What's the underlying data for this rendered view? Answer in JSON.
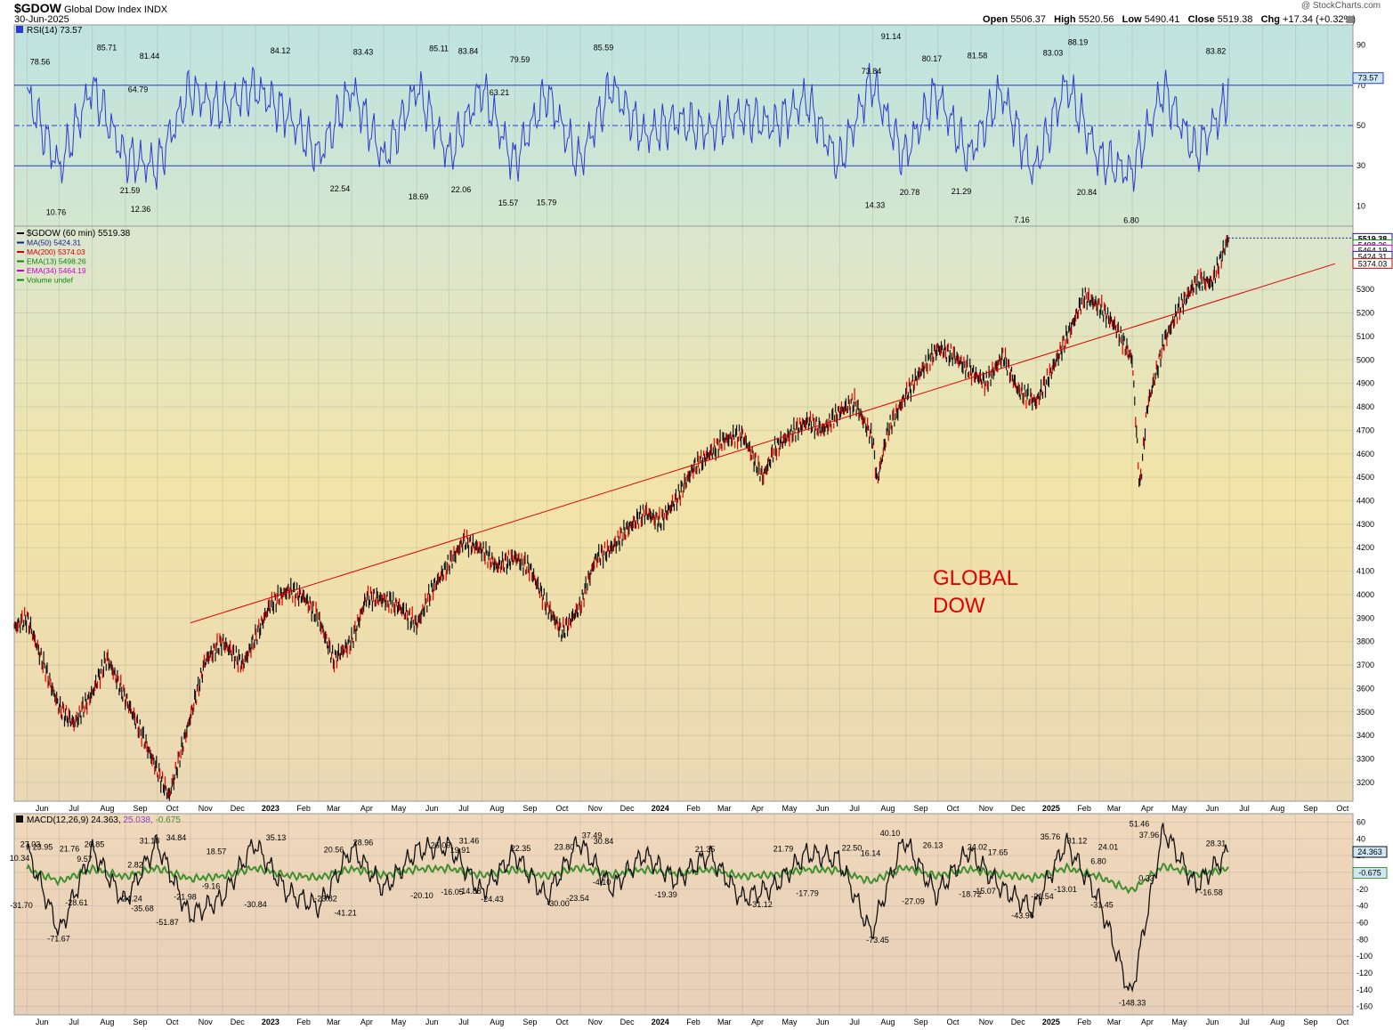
{
  "header": {
    "symbol": "$GDOW",
    "name": "Global Dow Index",
    "exchange": "INDX",
    "date": "30-Jun-2025",
    "watermark": "@ StockCharts.com",
    "open_label": "Open",
    "open": "5506.37",
    "high_label": "High",
    "high": "5520.56",
    "low_label": "Low",
    "low": "5490.41",
    "close_label": "Close",
    "close": "5519.38",
    "chg_label": "Chg",
    "chg": "+17.34 (+0.32%)"
  },
  "rsi": {
    "legend": "RSI(14) 73.57",
    "current": "73.57",
    "ticks": [
      "90",
      "70",
      "50",
      "30",
      "10"
    ],
    "peaks": [
      "78.56",
      "85.71",
      "64.79",
      "81.44",
      "84.12",
      "83.43",
      "85.11",
      "83.84",
      "63.21",
      "79.59",
      "85.59",
      "73.84",
      "91.14",
      "80.17",
      "81.58",
      "83.03",
      "88.19",
      "83.82"
    ],
    "troughs": [
      "10.76",
      "21.59",
      "12.36",
      "22.54",
      "18.69",
      "22.06",
      "15.57",
      "15.79",
      "14.33",
      "20.78",
      "21.29",
      "7.16",
      "20.84",
      "6.80"
    ]
  },
  "price": {
    "legend": {
      "main": "$GDOW (60 min) 5519.38",
      "ma50": "MA(50) 5424.31",
      "ma200": "MA(200) 5374.03",
      "ema13": "EMA(13) 5498.26",
      "ema34": "EMA(34) 5464.19",
      "volume": "Volume undef"
    },
    "value_boxes": [
      "5519.38",
      "5498.26",
      "5464.19",
      "5424.31",
      "5374.03"
    ],
    "ticks": [
      "5300",
      "5200",
      "5100",
      "5000",
      "4900",
      "4800",
      "4700",
      "4600",
      "4500",
      "4400",
      "4300",
      "4200",
      "4100",
      "4000",
      "3900",
      "3800",
      "3700",
      "3600",
      "3500",
      "3400",
      "3300",
      "3200"
    ],
    "annotation_line1": "GLOBAL",
    "annotation_line2": "DOW"
  },
  "macd": {
    "legend_label": "MACD(12,26,9)",
    "legend_macd": "24.363",
    "legend_signal": "25.038",
    "legend_hist": "-0.675",
    "current_macd": "24.363",
    "current_hist": "-0.675",
    "ticks": [
      "60",
      "40",
      "20",
      "0",
      "-20",
      "-40",
      "-60",
      "-80",
      "-100",
      "-120",
      "-140",
      "-160"
    ],
    "labels_up": [
      "10.34",
      "27.03",
      "23.95",
      "21.76",
      "26.85",
      "9.57",
      "2.82",
      "31.18",
      "34.84",
      "18.57",
      "35.13",
      "20.56",
      "28.96",
      "26.09",
      "19.91",
      "31.46",
      "22.35",
      "23.80",
      "37.49",
      "30.84",
      "21.35",
      "21.79",
      "22.50",
      "16.14",
      "40.10",
      "26.13",
      "24.02",
      "17.65",
      "35.76",
      "31.12",
      "24.01",
      "6.80",
      "51.46",
      "37.96",
      "28.31"
    ],
    "labels_down": [
      "-31.70",
      "-71.67",
      "-28.61",
      "-24.24",
      "-35.68",
      "-51.87",
      "-21.98",
      "-9.16",
      "-30.84",
      "-23.82",
      "-41.21",
      "-20.10",
      "-16.05",
      "-14.88",
      "-24.43",
      "-30.00",
      "-23.54",
      "-4.10",
      "-19.39",
      "-31.12",
      "-17.79",
      "-73.45",
      "-27.09",
      "-18.72",
      "-15.07",
      "-43.96",
      "-21.54",
      "-13.01",
      "-31.45",
      "-148.33",
      "0.33",
      "-16.58"
    ]
  },
  "x_axis": {
    "labels": [
      "Jun",
      "Jul",
      "Aug",
      "Sep",
      "Oct",
      "Nov",
      "Dec",
      "2023",
      "Feb",
      "Mar",
      "Apr",
      "May",
      "Jun",
      "Jul",
      "Aug",
      "Sep",
      "Oct",
      "Nov",
      "Dec",
      "2024",
      "Feb",
      "Mar",
      "Apr",
      "May",
      "Jun",
      "Jul",
      "Aug",
      "Sep",
      "Oct",
      "Nov",
      "Dec",
      "2025",
      "Feb",
      "Mar",
      "Apr",
      "May",
      "Jun",
      "Jul",
      "Aug",
      "Sep",
      "Oct"
    ]
  },
  "chart_data": [
    {
      "type": "line",
      "title": "RSI(14)",
      "ylim": [
        0,
        100
      ],
      "reference_lines": [
        70,
        50,
        30
      ],
      "x": [
        "2022-06",
        "2022-07",
        "2022-08",
        "2022-09",
        "2022-10",
        "2022-11",
        "2022-12",
        "2023-01",
        "2023-02",
        "2023-03",
        "2023-04",
        "2023-05",
        "2023-06",
        "2023-07",
        "2023-08",
        "2023-09",
        "2023-10",
        "2023-11",
        "2023-12",
        "2024-01",
        "2024-02",
        "2024-03",
        "2024-04",
        "2024-05",
        "2024-06",
        "2024-07",
        "2024-08",
        "2024-09",
        "2024-10",
        "2024-11",
        "2024-12",
        "2025-01",
        "2025-02",
        "2025-03",
        "2025-04",
        "2025-05",
        "2025-06",
        "2025-06-30"
      ],
      "series": [
        {
          "values": [
            78.56,
            10.76,
            85.71,
            21.59,
            12.36,
            81.44,
            64.79,
            84.12,
            60,
            22.54,
            83.43,
            18.69,
            85.11,
            22.06,
            83.84,
            15.57,
            79.59,
            15.79,
            85.59,
            40,
            55,
            45,
            60,
            50,
            73.84,
            14.33,
            91.14,
            20.78,
            80.17,
            21.29,
            81.58,
            7.16,
            88.19,
            20.84,
            6.8,
            83.03,
            25,
            73.57
          ]
        }
      ]
    },
    {
      "type": "line",
      "title": "$GDOW (60 min)",
      "ylim": [
        3120,
        5570
      ],
      "x": [
        "2022-05-20",
        "2022-06-01",
        "2022-06-15",
        "2022-07-01",
        "2022-07-15",
        "2022-08-01",
        "2022-08-15",
        "2022-09-01",
        "2022-09-15",
        "2022-10-01",
        "2022-10-12",
        "2022-11-01",
        "2022-11-15",
        "2022-12-01",
        "2022-12-20",
        "2023-01-15",
        "2023-02-01",
        "2023-02-15",
        "2023-03-01",
        "2023-03-15",
        "2023-04-01",
        "2023-04-15",
        "2023-05-01",
        "2023-05-15",
        "2023-06-01",
        "2023-06-15",
        "2023-07-01",
        "2023-07-15",
        "2023-08-01",
        "2023-08-15",
        "2023-09-01",
        "2023-09-15",
        "2023-10-01",
        "2023-10-15",
        "2023-11-01",
        "2023-11-15",
        "2023-12-01",
        "2023-12-15",
        "2024-01-01",
        "2024-01-15",
        "2024-02-01",
        "2024-02-15",
        "2024-03-01",
        "2024-03-15",
        "2024-04-01",
        "2024-04-20",
        "2024-05-01",
        "2024-05-15",
        "2024-06-01",
        "2024-06-15",
        "2024-07-01",
        "2024-07-15",
        "2024-08-01",
        "2024-08-05",
        "2024-08-15",
        "2024-09-01",
        "2024-09-15",
        "2024-10-01",
        "2024-10-15",
        "2024-11-01",
        "2024-11-15",
        "2024-12-01",
        "2024-12-15",
        "2025-01-01",
        "2025-01-15",
        "2025-02-01",
        "2025-02-15",
        "2025-03-01",
        "2025-03-15",
        "2025-04-01",
        "2025-04-08",
        "2025-04-15",
        "2025-05-01",
        "2025-05-15",
        "2025-06-01",
        "2025-06-15",
        "2025-06-30"
      ],
      "series": [
        {
          "name": "$GDOW",
          "values": [
            3860,
            3900,
            3720,
            3520,
            3450,
            3580,
            3730,
            3560,
            3420,
            3250,
            3140,
            3480,
            3720,
            3800,
            3700,
            3960,
            4020,
            3990,
            3900,
            3720,
            3800,
            3990,
            3980,
            3950,
            3870,
            4020,
            4130,
            4230,
            4190,
            4120,
            4160,
            4110,
            3950,
            3840,
            3950,
            4150,
            4200,
            4280,
            4350,
            4310,
            4420,
            4540,
            4600,
            4660,
            4680,
            4500,
            4620,
            4680,
            4740,
            4700,
            4780,
            4820,
            4660,
            4480,
            4700,
            4850,
            4950,
            5050,
            5020,
            4950,
            4900,
            5020,
            4870,
            4820,
            4950,
            5120,
            5270,
            5230,
            5150,
            5000,
            4450,
            4800,
            5080,
            5220,
            5340,
            5330,
            5519.38
          ]
        },
        {
          "name": "Trendline",
          "x": [
            "2022-11-01",
            "2025-10-08"
          ],
          "values": [
            3880,
            5410
          ]
        }
      ]
    },
    {
      "type": "line",
      "title": "MACD(12,26,9)",
      "ylim": [
        -170,
        70
      ],
      "x": [
        "2022-06",
        "2022-07",
        "2022-08",
        "2022-09",
        "2022-10",
        "2022-11",
        "2022-12",
        "2023-01",
        "2023-02",
        "2023-03",
        "2023-04",
        "2023-05",
        "2023-06",
        "2023-07",
        "2023-08",
        "2023-09",
        "2023-10",
        "2023-11",
        "2023-12",
        "2024-01",
        "2024-02",
        "2024-03",
        "2024-04",
        "2024-05",
        "2024-06",
        "2024-07",
        "2024-08",
        "2024-09",
        "2024-10",
        "2024-11",
        "2024-12",
        "2025-01",
        "2025-02",
        "2025-03",
        "2025-04",
        "2025-05",
        "2025-06",
        "2025-06-30"
      ],
      "series": [
        {
          "name": "MACD",
          "values": [
            27.03,
            -71.67,
            26.85,
            -35.68,
            34.84,
            -51.87,
            -30.84,
            35.13,
            -23.82,
            -41.21,
            28.96,
            -20.1,
            26.09,
            31.46,
            -24.43,
            22.35,
            -30.0,
            37.49,
            -19.39,
            21.35,
            -10,
            21.79,
            -31.12,
            -17.79,
            22.5,
            16.14,
            -73.45,
            40.1,
            -27.09,
            26.13,
            -18.72,
            -43.96,
            35.76,
            -31.45,
            -148.33,
            51.46,
            -16.58,
            24.363
          ]
        }
      ]
    }
  ]
}
